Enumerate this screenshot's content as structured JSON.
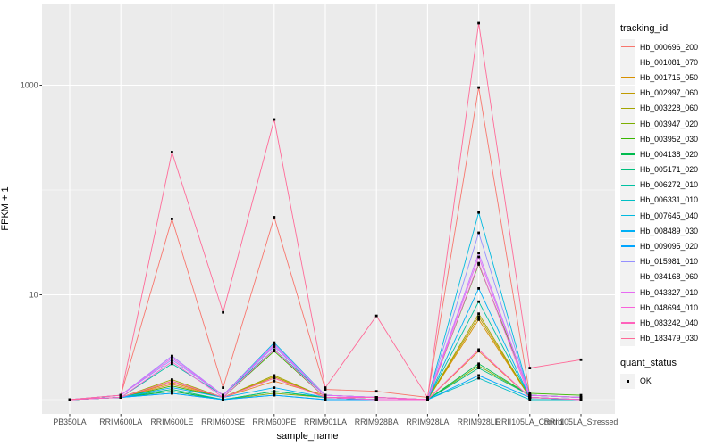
{
  "figure": {
    "x_axis_title": "sample_name",
    "y_axis_title": "FPKM + 1"
  },
  "legend": {
    "color_legend_title": "tracking_id",
    "shape_legend_title": "quant_status",
    "shape_legend_items": [
      {
        "label": "OK",
        "shape": "black-square"
      }
    ]
  },
  "ui_colors": {
    "panel_background": "#EBEBEB",
    "gridline": "#FFFFFF",
    "tick_label": "#4D4D4D",
    "tick_mark": "#333333",
    "point": "#000000",
    "legend_key_background": "#F2F2F2"
  },
  "chart_data": {
    "type": "line",
    "title": "",
    "xlabel": "sample_name",
    "ylabel": "FPKM + 1",
    "y_scale": "log10",
    "legend_position": "right",
    "grid": "on",
    "ylim": [
      0.75,
      5300
    ],
    "y_axis_ticks": [
      {
        "label": "10",
        "value": 10
      },
      {
        "label": "1000",
        "value": 1000
      }
    ],
    "y_major_gridlines": [
      10,
      1000
    ],
    "y_minor_gridlines": [
      1,
      100
    ],
    "point_shape": "square",
    "categories": [
      "PB350LA",
      "RRIM600LA",
      "RRIM600LE",
      "RRIM600SE",
      "RRIM600PE",
      "RRIM901LA",
      "RRIM928BA",
      "RRIM928LA",
      "RRIM928LE",
      "RRII105LA_Control",
      "RRII105LA_Stressed"
    ],
    "series": [
      {
        "name": "Hb_000696_200",
        "color": "#F8766D",
        "values": [
          1.0,
          1.1,
          53,
          1.3,
          55,
          1.25,
          1.2,
          1.05,
          950,
          1.1,
          1.05
        ]
      },
      {
        "name": "Hb_001081_070",
        "color": "#EA8331",
        "values": [
          1.0,
          1.05,
          1.4,
          1.05,
          1.5,
          1.1,
          1.05,
          1.0,
          2.9,
          1.05,
          1.0
        ]
      },
      {
        "name": "Hb_001715_050",
        "color": "#D89000",
        "values": [
          1.0,
          1.05,
          1.45,
          1.05,
          1.6,
          1.05,
          1.05,
          1.0,
          5.8,
          1.05,
          1.0
        ]
      },
      {
        "name": "Hb_002997_060",
        "color": "#C09B00",
        "values": [
          1.0,
          1.05,
          1.5,
          1.05,
          1.65,
          1.05,
          1.0,
          1.0,
          6.2,
          1.05,
          1.0
        ]
      },
      {
        "name": "Hb_003228_060",
        "color": "#A3A500",
        "values": [
          1.0,
          1.05,
          1.55,
          1.05,
          1.7,
          1.05,
          1.0,
          1.0,
          6.6,
          1.05,
          1.0
        ]
      },
      {
        "name": "Hb_003947_020",
        "color": "#7CAE00",
        "values": [
          1.0,
          1.05,
          1.2,
          1.0,
          1.15,
          1.05,
          1.0,
          1.0,
          2.1,
          1.1,
          1.05
        ]
      },
      {
        "name": "Hb_003952_030",
        "color": "#39B600",
        "values": [
          1.0,
          1.05,
          1.35,
          1.05,
          2.9,
          1.05,
          1.0,
          1.0,
          19.5,
          1.15,
          1.1
        ]
      },
      {
        "name": "Hb_004138_020",
        "color": "#00BB4E",
        "values": [
          1.0,
          1.05,
          1.2,
          1.0,
          1.2,
          1.05,
          1.0,
          1.0,
          2.2,
          1.1,
          1.05
        ]
      },
      {
        "name": "Hb_005171_020",
        "color": "#00BF7D",
        "values": [
          1.0,
          1.05,
          1.25,
          1.0,
          1.2,
          1.05,
          1.0,
          1.0,
          2.0,
          1.1,
          1.05
        ]
      },
      {
        "name": "Hb_006272_010",
        "color": "#00C1A3",
        "values": [
          1.0,
          1.05,
          2.2,
          1.1,
          3.0,
          1.1,
          1.05,
          1.0,
          8.6,
          1.05,
          1.0
        ]
      },
      {
        "name": "Hb_006331_010",
        "color": "#00BFC4",
        "values": [
          1.0,
          1.05,
          1.15,
          1.0,
          1.1,
          1.0,
          1.0,
          1.0,
          1.6,
          1.0,
          1.0
        ]
      },
      {
        "name": "Hb_007645_040",
        "color": "#00BAE0",
        "values": [
          1.0,
          1.1,
          2.6,
          1.1,
          3.5,
          1.1,
          1.05,
          1.0,
          61,
          1.1,
          1.05
        ]
      },
      {
        "name": "Hb_008489_030",
        "color": "#00B0F6",
        "values": [
          1.0,
          1.05,
          1.3,
          1.05,
          1.3,
          1.05,
          1.0,
          1.0,
          11.5,
          1.05,
          1.0
        ]
      },
      {
        "name": "Hb_009095_020",
        "color": "#00A5FF",
        "values": [
          1.0,
          1.05,
          1.15,
          1.0,
          1.1,
          1.0,
          1.0,
          1.0,
          1.7,
          1.05,
          1.0
        ]
      },
      {
        "name": "Hb_015981_010",
        "color": "#9590FF",
        "values": [
          1.0,
          1.1,
          2.4,
          1.1,
          3.2,
          1.1,
          1.05,
          1.0,
          39,
          1.1,
          1.05
        ]
      },
      {
        "name": "Hb_034168_060",
        "color": "#C77CFF",
        "values": [
          1.0,
          1.1,
          2.6,
          1.1,
          3.4,
          1.1,
          1.05,
          1.0,
          25,
          1.1,
          1.05
        ]
      },
      {
        "name": "Hb_043327_010",
        "color": "#E76BF3",
        "values": [
          1.0,
          1.1,
          2.5,
          1.1,
          3.3,
          1.1,
          1.05,
          1.0,
          23,
          1.1,
          1.05
        ]
      },
      {
        "name": "Hb_048694_010",
        "color": "#FA62DB",
        "values": [
          1.0,
          1.05,
          2.3,
          1.05,
          3.0,
          1.05,
          1.0,
          1.0,
          20,
          1.05,
          1.0
        ]
      },
      {
        "name": "Hb_083242_040",
        "color": "#FF62BC",
        "values": [
          1.0,
          1.05,
          1.5,
          1.05,
          1.6,
          1.05,
          1.05,
          1.0,
          3.0,
          1.05,
          1.0
        ]
      },
      {
        "name": "Hb_183479_030",
        "color": "#FF6A98",
        "values": [
          1.0,
          1.1,
          230,
          6.8,
          470,
          1.3,
          6.3,
          1.05,
          3900,
          2.0,
          2.4
        ]
      }
    ]
  }
}
